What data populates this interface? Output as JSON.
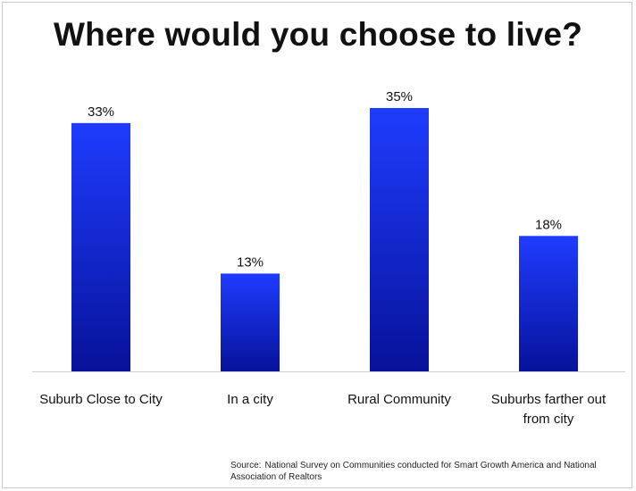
{
  "chart_data": {
    "type": "bar",
    "title": "Where would you choose to live?",
    "categories": [
      [
        "Suburb Close to City"
      ],
      [
        "In a city"
      ],
      [
        "Rural Community"
      ],
      [
        "Suburbs farther out",
        "from city"
      ]
    ],
    "values": [
      33,
      13,
      35,
      18
    ],
    "value_labels": [
      "33%",
      "13%",
      "35%",
      "18%"
    ],
    "ylim": [
      0,
      35
    ],
    "grid": false,
    "legend": "none",
    "colors": {
      "bar_top": "#1f3cff",
      "bar_bottom": "#07129a",
      "axis": "#cfcfcf"
    }
  },
  "source": {
    "prefix": "Source:",
    "text": "National Survey on Communities conducted for Smart Growth America and National Association of Realtors"
  }
}
